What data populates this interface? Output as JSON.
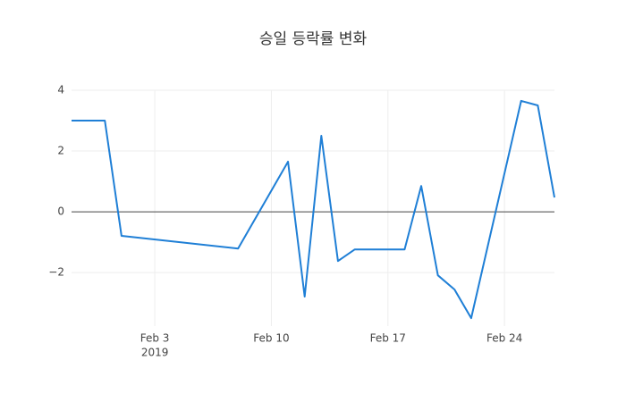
{
  "chart_data": {
    "type": "line",
    "title": "승일 등락률 변화",
    "x": [
      "2019-01-29",
      "2019-01-31",
      "2019-02-01",
      "2019-02-08",
      "2019-02-11",
      "2019-02-12",
      "2019-02-13",
      "2019-02-14",
      "2019-02-15",
      "2019-02-18",
      "2019-02-19",
      "2019-02-20",
      "2019-02-21",
      "2019-02-22",
      "2019-02-25",
      "2019-02-26",
      "2019-02-27"
    ],
    "series": [
      {
        "name": "등락률",
        "color": "#1f7fd6",
        "values": [
          3.0,
          3.0,
          -0.79,
          -1.21,
          1.65,
          -2.79,
          2.5,
          -1.62,
          -1.24,
          -1.24,
          0.85,
          -2.09,
          -2.56,
          -3.5,
          3.65,
          3.5,
          0.47
        ]
      }
    ],
    "xlim": [
      "2019-01-29",
      "2019-02-27"
    ],
    "xticks": [
      {
        "value": "2019-02-03",
        "label": "Feb 3"
      },
      {
        "value": "2019-02-10",
        "label": "Feb 10"
      },
      {
        "value": "2019-02-17",
        "label": "Feb 17"
      },
      {
        "value": "2019-02-24",
        "label": "Feb 24"
      }
    ],
    "x_tick_year": "2019",
    "ylim": [
      -3.76,
      4.0
    ],
    "yticks": [
      4,
      2,
      0,
      {
        "value": -2,
        "label": "−2"
      }
    ],
    "grid": true
  }
}
